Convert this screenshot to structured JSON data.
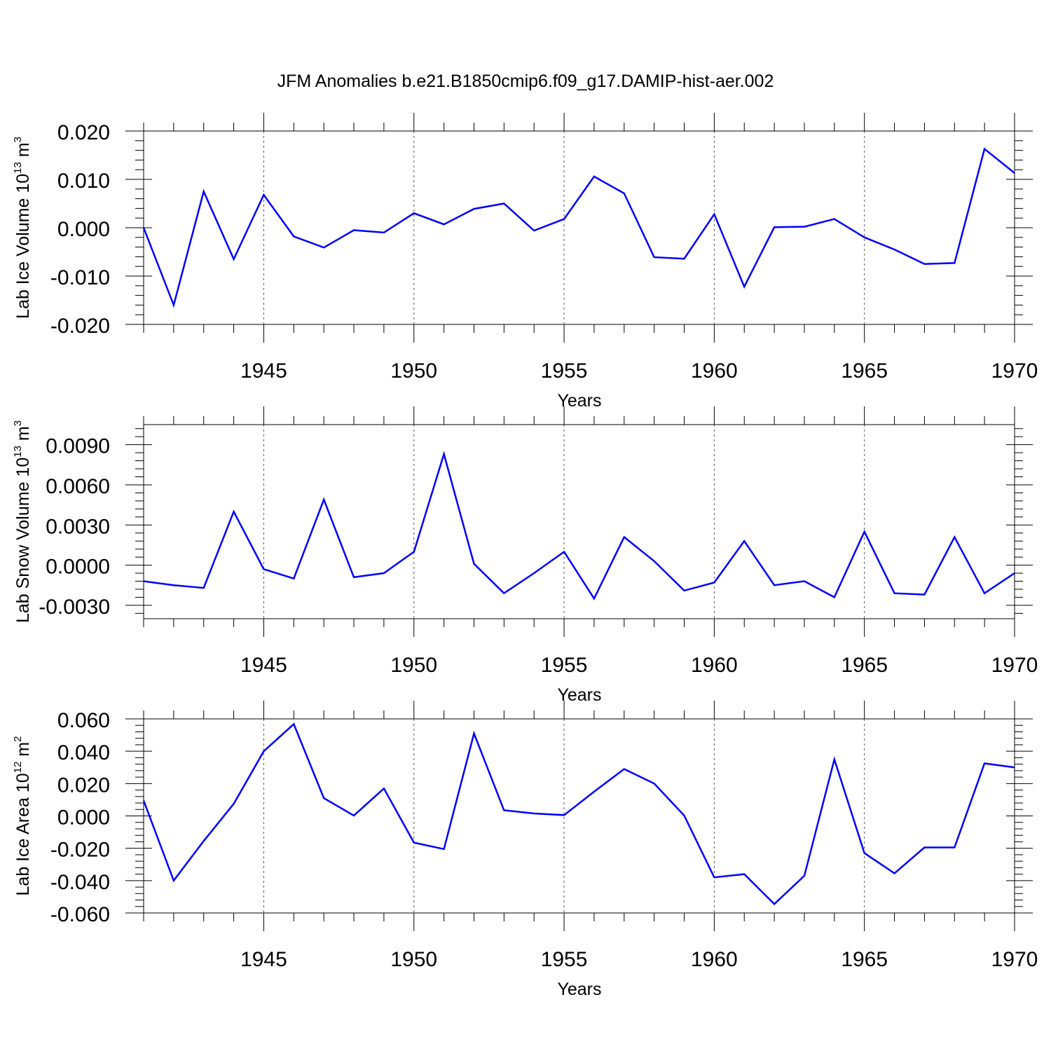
{
  "title": "JFM Anomalies b.e21.B1850cmip6.f09_g17.DAMIP-hist-aer.002",
  "chart_data": [
    {
      "type": "line",
      "ylabel": "Lab Ice Volume 10",
      "ylabel_exp": "13",
      "ylabel_unit": " m",
      "ylabel_unit_exp": "3",
      "xlabel": "Years",
      "xlim": [
        1941,
        1970
      ],
      "ylim": [
        -0.02,
        0.02
      ],
      "yticks": [
        -0.02,
        -0.01,
        0,
        0.01,
        0.02
      ],
      "yticklabels": [
        "-0.020",
        "-0.010",
        "0.000",
        "0.010",
        "0.020"
      ],
      "xticks": [
        1945,
        1950,
        1955,
        1960,
        1965,
        1970
      ],
      "xticklabels": [
        "1945",
        "1950",
        "1955",
        "1960",
        "1965",
        "1970"
      ],
      "x": [
        1941,
        1942,
        1943,
        1944,
        1945,
        1946,
        1947,
        1948,
        1949,
        1950,
        1951,
        1952,
        1953,
        1954,
        1955,
        1956,
        1957,
        1958,
        1959,
        1960,
        1961,
        1962,
        1963,
        1964,
        1965,
        1966,
        1967,
        1968,
        1969,
        1970
      ],
      "series": [
        {
          "color": "#0000ff",
          "values": [
            0.0,
            -0.016,
            0.0075,
            -0.0065,
            0.0068,
            -0.0018,
            -0.0041,
            -0.0005,
            -0.001,
            0.003,
            0.0007,
            0.0039,
            0.005,
            -0.0006,
            0.0018,
            0.0106,
            0.0071,
            -0.0061,
            -0.0064,
            0.0028,
            -0.0122,
            0.0001,
            0.0002,
            0.0018,
            -0.002,
            -0.0045,
            -0.0075,
            -0.0073,
            0.0163,
            0.0113
          ]
        }
      ]
    },
    {
      "type": "line",
      "ylabel": "Lab Snow Volume 10",
      "ylabel_exp": "13",
      "ylabel_unit": " m",
      "ylabel_unit_exp": "3",
      "xlabel": "Years",
      "xlim": [
        1941,
        1970
      ],
      "ylim": [
        -0.004,
        0.0105
      ],
      "yticks": [
        -0.003,
        0,
        0.003,
        0.006,
        0.009
      ],
      "yticklabels": [
        "-0.0030",
        "0.0000",
        "0.0030",
        "0.0060",
        "0.0090"
      ],
      "xticks": [
        1945,
        1950,
        1955,
        1960,
        1965,
        1970
      ],
      "xticklabels": [
        "1945",
        "1950",
        "1955",
        "1960",
        "1965",
        "1970"
      ],
      "x": [
        1941,
        1942,
        1943,
        1944,
        1945,
        1946,
        1947,
        1948,
        1949,
        1950,
        1951,
        1952,
        1953,
        1954,
        1955,
        1956,
        1957,
        1958,
        1959,
        1960,
        1961,
        1962,
        1963,
        1964,
        1965,
        1966,
        1967,
        1968,
        1969,
        1970
      ],
      "series": [
        {
          "color": "#0000ff",
          "values": [
            -0.0012,
            -0.0015,
            -0.0017,
            0.004,
            -0.0003,
            -0.001,
            0.0049,
            -0.0009,
            -0.0006,
            0.001,
            0.0083,
            0.0001,
            -0.0021,
            -0.0006,
            0.001,
            -0.0025,
            0.0021,
            0.0003,
            -0.0019,
            -0.0013,
            0.0018,
            -0.0015,
            -0.0012,
            -0.0024,
            0.0025,
            -0.0021,
            -0.0022,
            0.0021,
            -0.0021,
            -0.0006
          ]
        }
      ]
    },
    {
      "type": "line",
      "ylabel": "Lab Ice Area 10",
      "ylabel_exp": "12",
      "ylabel_unit": " m",
      "ylabel_unit_exp": "2",
      "xlabel": "Years",
      "xlim": [
        1941,
        1970
      ],
      "ylim": [
        -0.06,
        0.06
      ],
      "yticks": [
        -0.06,
        -0.04,
        -0.02,
        0,
        0.02,
        0.04,
        0.06
      ],
      "yticklabels": [
        "-0.060",
        "-0.040",
        "-0.020",
        "0.000",
        "0.020",
        "0.040",
        "0.060"
      ],
      "xticks": [
        1945,
        1950,
        1955,
        1960,
        1965,
        1970
      ],
      "xticklabels": [
        "1945",
        "1950",
        "1955",
        "1960",
        "1965",
        "1970"
      ],
      "x": [
        1941,
        1942,
        1943,
        1944,
        1945,
        1946,
        1947,
        1948,
        1949,
        1950,
        1951,
        1952,
        1953,
        1954,
        1955,
        1956,
        1957,
        1958,
        1959,
        1960,
        1961,
        1962,
        1963,
        1964,
        1965,
        1966,
        1967,
        1968,
        1969,
        1970
      ],
      "series": [
        {
          "color": "#0000ff",
          "values": [
            0.0095,
            -0.04,
            -0.0155,
            0.0075,
            0.04,
            0.0568,
            0.011,
            0.0002,
            0.017,
            -0.0165,
            -0.0205,
            0.051,
            0.0035,
            0.0015,
            0.0005,
            0.015,
            0.029,
            0.02,
            0.0002,
            -0.038,
            -0.036,
            -0.0545,
            -0.037,
            0.035,
            -0.023,
            -0.0355,
            -0.0195,
            -0.0195,
            0.0325,
            0.03
          ]
        }
      ]
    }
  ]
}
